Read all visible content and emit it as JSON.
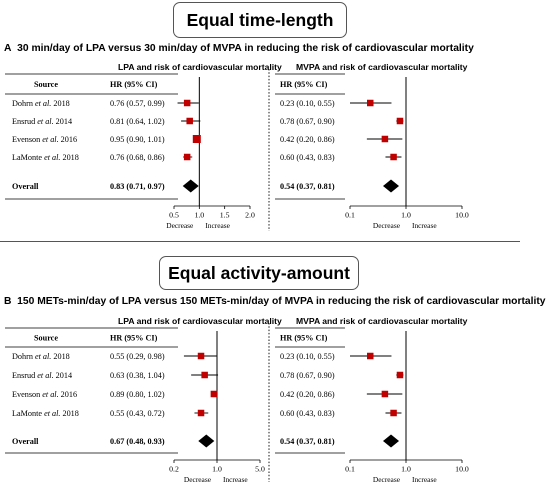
{
  "section_titles": [
    "Equal time-length",
    "Equal activity-amount"
  ],
  "chart_data": [
    {
      "type": "forest",
      "panel_label": "A",
      "panel_title": "30 min/day of LPA versus 30 min/day of MVPA in reducing the risk of cardiovascular mortality",
      "table_header": {
        "source": "Source",
        "hr": "HR (95% CI)"
      },
      "studies": [
        {
          "parts": [
            "Dohrn ",
            "et al.",
            " 2018"
          ]
        },
        {
          "parts": [
            "Ensrud ",
            "et al.",
            " 2014"
          ]
        },
        {
          "parts": [
            "Evenson ",
            "et al.",
            " 2016"
          ]
        },
        {
          "parts": [
            "LaMonte ",
            "et al.",
            " 2018"
          ]
        }
      ],
      "overall_label": "Overall",
      "left": {
        "title": "LPA and risk of cardiovascular mortality",
        "scale": "linear",
        "xlim": [
          0.5,
          2.0
        ],
        "ticks": [
          {
            "v": 0.5,
            "l": "0.5"
          },
          {
            "v": 1.0,
            "l": "1.0"
          },
          {
            "v": 1.5,
            "l": "1.5"
          },
          {
            "v": 2.0,
            "l": "2.0"
          }
        ],
        "decrease_label": "Decrease",
        "increase_label": "Increase",
        "rows": [
          {
            "hr": 0.76,
            "lo": 0.57,
            "hi": 0.99,
            "text": "0.76 (0.57, 0.99)"
          },
          {
            "hr": 0.81,
            "lo": 0.64,
            "hi": 1.02,
            "text": "0.81 (0.64, 1.02)"
          },
          {
            "hr": 0.95,
            "lo": 0.9,
            "hi": 1.01,
            "text": "0.95 (0.90, 1.01)"
          },
          {
            "hr": 0.76,
            "lo": 0.68,
            "hi": 0.86,
            "text": "0.76 (0.68, 0.86)"
          }
        ],
        "overall": {
          "hr": 0.83,
          "lo": 0.71,
          "hi": 0.97,
          "text": "0.83 (0.71, 0.97)"
        }
      },
      "right": {
        "title": "MVPA and risk of cardiovascular mortality",
        "scale": "log",
        "xlim": [
          0.1,
          10.0
        ],
        "ticks": [
          {
            "v": 0.1,
            "l": "0.1"
          },
          {
            "v": 1.0,
            "l": "1.0"
          },
          {
            "v": 10.0,
            "l": "10.0"
          }
        ],
        "decrease_label": "Decrease",
        "increase_label": "Increase",
        "rows": [
          {
            "hr": 0.23,
            "lo": 0.1,
            "hi": 0.55,
            "text": "0.23 (0.10, 0.55)"
          },
          {
            "hr": 0.78,
            "lo": 0.67,
            "hi": 0.9,
            "text": "0.78 (0.67, 0.90)"
          },
          {
            "hr": 0.42,
            "lo": 0.2,
            "hi": 0.86,
            "text": "0.42 (0.20, 0.86)"
          },
          {
            "hr": 0.6,
            "lo": 0.43,
            "hi": 0.83,
            "text": "0.60 (0.43, 0.83)"
          }
        ],
        "overall": {
          "hr": 0.54,
          "lo": 0.37,
          "hi": 0.81,
          "text": "0.54 (0.37, 0.81)"
        }
      }
    },
    {
      "type": "forest",
      "panel_label": "B",
      "panel_title": "150 METs-min/day of LPA versus 150 METs-min/day of MVPA in reducing the risk of cardiovascular mortality",
      "table_header": {
        "source": "Source",
        "hr": "HR (95% CI)"
      },
      "studies": [
        {
          "parts": [
            "Dohrn ",
            "et al.",
            " 2018"
          ]
        },
        {
          "parts": [
            "Ensrud ",
            "et al.",
            " 2014"
          ]
        },
        {
          "parts": [
            "Evenson ",
            "et al.",
            " 2016"
          ]
        },
        {
          "parts": [
            "LaMonte ",
            "et al.",
            " 2018"
          ]
        }
      ],
      "overall_label": "Overall",
      "left": {
        "title": "LPA and risk of cardiovascular mortality",
        "scale": "log",
        "xlim": [
          0.2,
          5.0
        ],
        "ticks": [
          {
            "v": 0.2,
            "l": "0.2"
          },
          {
            "v": 1.0,
            "l": "1.0"
          },
          {
            "v": 5.0,
            "l": "5.0"
          }
        ],
        "decrease_label": "Decrease",
        "increase_label": "Increase",
        "rows": [
          {
            "hr": 0.55,
            "lo": 0.29,
            "hi": 0.98,
            "text": "0.55 (0.29, 0.98)"
          },
          {
            "hr": 0.63,
            "lo": 0.38,
            "hi": 1.04,
            "text": "0.63 (0.38, 1.04)"
          },
          {
            "hr": 0.89,
            "lo": 0.8,
            "hi": 1.02,
            "text": "0.89 (0.80, 1.02)"
          },
          {
            "hr": 0.55,
            "lo": 0.43,
            "hi": 0.72,
            "text": "0.55 (0.43, 0.72)"
          }
        ],
        "overall": {
          "hr": 0.67,
          "lo": 0.48,
          "hi": 0.93,
          "text": "0.67 (0.48, 0.93)"
        }
      },
      "right": {
        "title": "MVPA and risk of cardiovascular mortality",
        "scale": "log",
        "xlim": [
          0.1,
          10.0
        ],
        "ticks": [
          {
            "v": 0.1,
            "l": "0.1"
          },
          {
            "v": 1.0,
            "l": "1.0"
          },
          {
            "v": 10.0,
            "l": "10.0"
          }
        ],
        "decrease_label": "Decrease",
        "increase_label": "Increase",
        "rows": [
          {
            "hr": 0.23,
            "lo": 0.1,
            "hi": 0.55,
            "text": "0.23 (0.10, 0.55)"
          },
          {
            "hr": 0.78,
            "lo": 0.67,
            "hi": 0.9,
            "text": "0.78 (0.67, 0.90)"
          },
          {
            "hr": 0.42,
            "lo": 0.2,
            "hi": 0.86,
            "text": "0.42 (0.20, 0.86)"
          },
          {
            "hr": 0.6,
            "lo": 0.43,
            "hi": 0.83,
            "text": "0.60 (0.43, 0.83)"
          }
        ],
        "overall": {
          "hr": 0.54,
          "lo": 0.37,
          "hi": 0.81,
          "text": "0.54 (0.37, 0.81)"
        }
      }
    }
  ],
  "colors": {
    "marker": "#c00000",
    "diamond": "#000000"
  }
}
